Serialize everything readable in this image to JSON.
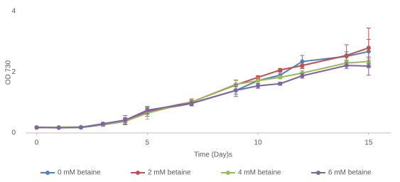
{
  "chart_data": {
    "type": "line",
    "x_label": "Time (Day)s",
    "y_label": "OD 730",
    "x": [
      0,
      1,
      2,
      3,
      4,
      5,
      7,
      9,
      10,
      11,
      12,
      14,
      15
    ],
    "series": [
      {
        "name": "0 mM betaine",
        "color": "#4f81bd",
        "values": [
          0.18,
          0.18,
          0.18,
          0.27,
          0.38,
          0.7,
          0.97,
          1.4,
          1.72,
          1.9,
          2.35,
          2.52,
          2.68
        ],
        "errors": [
          0.02,
          0.02,
          0.02,
          0.05,
          0.1,
          0.15,
          0.08,
          0.12,
          0.1,
          0.1,
          0.2,
          0.15,
          0.4
        ]
      },
      {
        "name": "2 mM betaine",
        "color": "#c0504d",
        "values": [
          0.18,
          0.18,
          0.19,
          0.3,
          0.42,
          0.72,
          1.02,
          1.58,
          1.83,
          2.07,
          2.22,
          2.55,
          2.8
        ],
        "errors": [
          0.02,
          0.02,
          0.02,
          0.04,
          0.08,
          0.1,
          0.1,
          0.15,
          0.05,
          0.05,
          0.1,
          0.35,
          0.65
        ]
      },
      {
        "name": "4 mM betaine",
        "color": "#9bbb59",
        "values": [
          0.17,
          0.19,
          0.2,
          0.28,
          0.38,
          0.65,
          1.02,
          1.6,
          1.72,
          1.83,
          1.97,
          2.3,
          2.35
        ],
        "errors": [
          0.02,
          0.02,
          0.02,
          0.04,
          0.08,
          0.2,
          0.08,
          0.15,
          0.1,
          0.05,
          0.08,
          0.1,
          0.1
        ]
      },
      {
        "name": "6 mM betaine",
        "color": "#8064a2",
        "values": [
          0.18,
          0.17,
          0.18,
          0.3,
          0.42,
          0.75,
          0.98,
          1.4,
          1.55,
          1.62,
          1.88,
          2.22,
          2.2
        ],
        "errors": [
          0.02,
          0.02,
          0.02,
          0.04,
          0.15,
          0.12,
          0.08,
          0.2,
          0.08,
          0.05,
          0.08,
          0.1,
          0.3
        ]
      }
    ],
    "xlim": [
      -0.5,
      16
    ],
    "xticks": [
      0,
      5,
      10,
      15
    ],
    "ylim": [
      0,
      4
    ],
    "yticks": [
      0,
      2,
      4
    ],
    "grid": false,
    "legend": "bottom"
  }
}
